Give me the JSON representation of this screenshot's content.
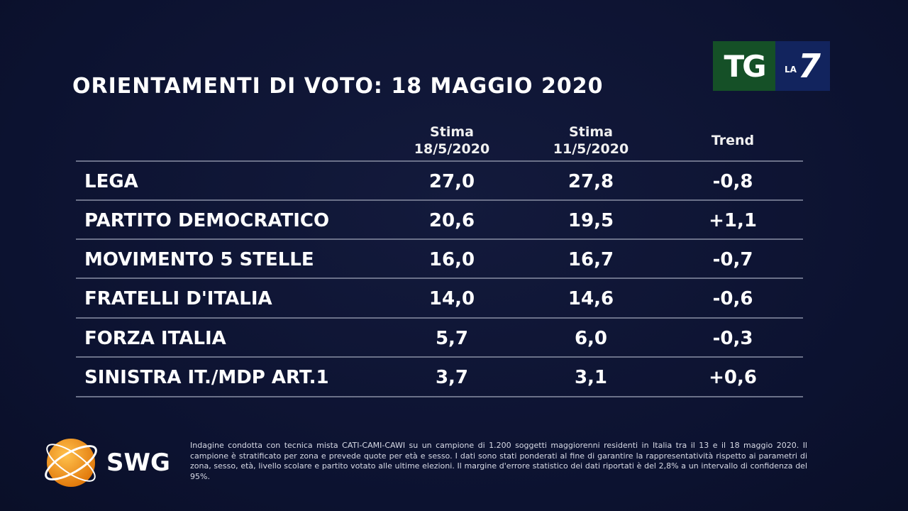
{
  "title": "ORIENTAMENTI DI VOTO: 18 MAGGIO 2020",
  "logo": {
    "tg": "TG",
    "la": "LA",
    "seven": "7",
    "green": "#155027",
    "blue": "#12245e"
  },
  "chart_data": {
    "type": "table",
    "columns": [
      {
        "line1": "Stima",
        "line2": "18/5/2020"
      },
      {
        "line1": "Stima",
        "line2": "11/5/2020"
      },
      {
        "line1": "Trend",
        "line2": ""
      }
    ],
    "rows": [
      {
        "party": "LEGA",
        "v1": "27,0",
        "v2": "27,8",
        "trend": "-0,8"
      },
      {
        "party": "PARTITO DEMOCRATICO",
        "v1": "20,6",
        "v2": "19,5",
        "trend": "+1,1"
      },
      {
        "party": "MOVIMENTO 5 STELLE",
        "v1": "16,0",
        "v2": "16,7",
        "trend": "-0,7"
      },
      {
        "party": "FRATELLI D'ITALIA",
        "v1": "14,0",
        "v2": "14,6",
        "trend": "-0,6"
      },
      {
        "party": "FORZA ITALIA",
        "v1": "5,7",
        "v2": "6,0",
        "trend": "-0,3"
      },
      {
        "party": "SINISTRA IT./MDP ART.1",
        "v1": "3,7",
        "v2": "3,1",
        "trend": "+0,6"
      }
    ]
  },
  "source": {
    "brand": "SWG",
    "globe_color": "#f39a1e"
  },
  "footnote": "Indagine condotta con tecnica mista CATI-CAMI-CAWI su un campione di 1.200 soggetti maggiorenni residenti in Italia tra il 13 e il 18 maggio 2020. Il campione è stratificato per zona e prevede quote per età e sesso. I dati sono stati ponderati al fine di garantire la rappresentatività rispetto ai parametri di zona, sesso, età, livello scolare e partito votato alle ultime elezioni. Il margine d'errore statistico dei dati riportati è del 2,8% a un intervallo di confidenza del 95%."
}
